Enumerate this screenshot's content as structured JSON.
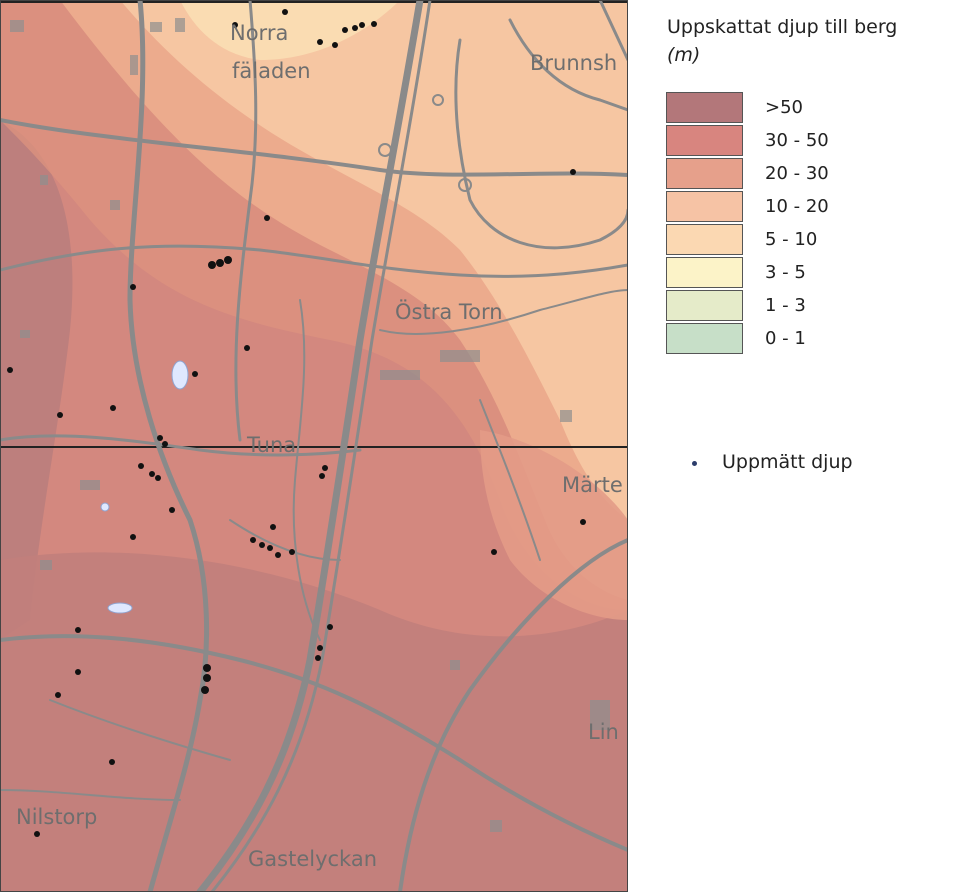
{
  "legend": {
    "title": "Uppskattat djup till berg",
    "unit": "(m)",
    "classes": [
      {
        "label": ">50",
        "color": "#b3777a"
      },
      {
        "label": "30 - 50",
        "color": "#d8857f"
      },
      {
        "label": "20 - 30",
        "color": "#e6a08b"
      },
      {
        "label": "10 - 20",
        "color": "#f6c3a5"
      },
      {
        "label": "5 - 10",
        "color": "#fbd8b2"
      },
      {
        "label": "3 - 5",
        "color": "#fcf3c8"
      },
      {
        "label": "1 - 3",
        "color": "#e5ebc9"
      },
      {
        "label": "0 - 1",
        "color": "#c7dfc8"
      }
    ],
    "measured_label": "Uppmätt djup"
  },
  "places": {
    "norra": "Norra",
    "faladen": "fäladen",
    "brunnshog": "Brunnsh",
    "ostra_torn": "Östra Torn",
    "tuna": "Tuna",
    "marten": "Märte",
    "lin": "Lin",
    "nilstorp": "Nilstorp",
    "gastelyckan": "Gastelyckan"
  }
}
